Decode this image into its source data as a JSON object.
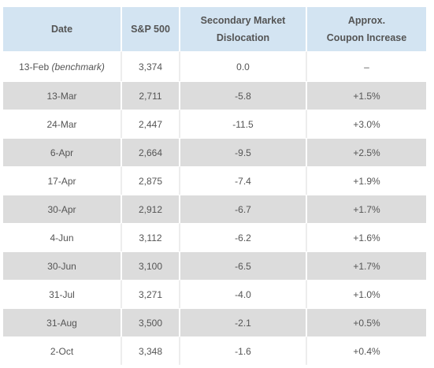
{
  "table": {
    "headers": {
      "date": "Date",
      "sp500": "S&P 500",
      "dislocation_line1": "Secondary Market",
      "dislocation_line2": "Dislocation",
      "coupon_line1": "Approx.",
      "coupon_line2": "Coupon Increase"
    },
    "rows": [
      {
        "date": "13-Feb",
        "note": "(benchmark)",
        "sp500": "3,374",
        "dislocation": "0.0",
        "coupon": "–"
      },
      {
        "date": "13-Mar",
        "note": "",
        "sp500": "2,711",
        "dislocation": "-5.8",
        "coupon": "+1.5%"
      },
      {
        "date": "24-Mar",
        "note": "",
        "sp500": "2,447",
        "dislocation": "-11.5",
        "coupon": "+3.0%"
      },
      {
        "date": "6-Apr",
        "note": "",
        "sp500": "2,664",
        "dislocation": "-9.5",
        "coupon": "+2.5%"
      },
      {
        "date": "17-Apr",
        "note": "",
        "sp500": "2,875",
        "dislocation": "-7.4",
        "coupon": "+1.9%"
      },
      {
        "date": "30-Apr",
        "note": "",
        "sp500": "2,912",
        "dislocation": "-6.7",
        "coupon": "+1.7%"
      },
      {
        "date": "4-Jun",
        "note": "",
        "sp500": "3,112",
        "dislocation": "-6.2",
        "coupon": "+1.6%"
      },
      {
        "date": "30-Jun",
        "note": "",
        "sp500": "3,100",
        "dislocation": "-6.5",
        "coupon": "+1.7%"
      },
      {
        "date": "31-Jul",
        "note": "",
        "sp500": "3,271",
        "dislocation": "-4.0",
        "coupon": "+1.0%"
      },
      {
        "date": "31-Aug",
        "note": "",
        "sp500": "3,500",
        "dislocation": "-2.1",
        "coupon": "+0.5%"
      },
      {
        "date": "2-Oct",
        "note": "",
        "sp500": "3,348",
        "dislocation": "-1.6",
        "coupon": "+0.4%"
      }
    ]
  },
  "colors": {
    "header_bg": "#d3e4f2",
    "shaded_row_bg": "#dcdcdc",
    "plain_row_bg": "#ffffff",
    "text": "#555555"
  }
}
